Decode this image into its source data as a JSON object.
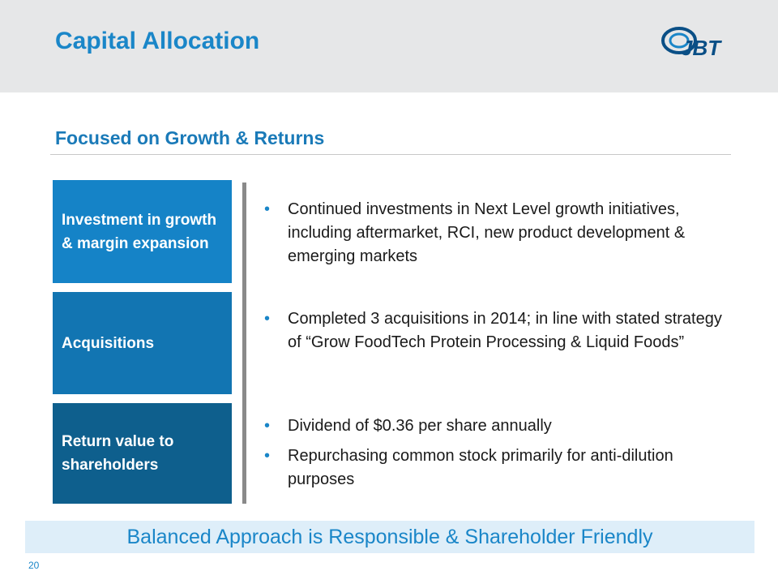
{
  "slide": {
    "title": "Capital Allocation",
    "subtitle": "Focused on Growth & Returns",
    "page_number": "20"
  },
  "logo": {
    "text": "JBT",
    "colors": {
      "primary": "#0a4f86",
      "accent": "#1a86c8"
    }
  },
  "categories": [
    {
      "label": "Investment in growth & margin expansion",
      "color": "#1583c7"
    },
    {
      "label": "Acquisitions",
      "color": "#1275b2"
    },
    {
      "label": "Return value to shareholders",
      "color": "#0e5f8d"
    }
  ],
  "bullets": {
    "investment": [
      "Continued investments in Next Level growth initiatives, including aftermarket, RCI, new product development & emerging markets"
    ],
    "acquisitions": [
      "Completed 3 acquisitions in 2014; in line with stated strategy of “Grow FoodTech Protein Processing & Liquid Foods”"
    ],
    "returns": [
      "Dividend of $0.36 per share annually",
      "Repurchasing common stock primarily for anti-dilution purposes"
    ]
  },
  "bullet_marker": "•",
  "banner": "Balanced Approach is Responsible & Shareholder Friendly",
  "colors": {
    "title": "#1a86c8",
    "header_bg": "#e6e7e8",
    "banner_bg": "#deeef9"
  }
}
